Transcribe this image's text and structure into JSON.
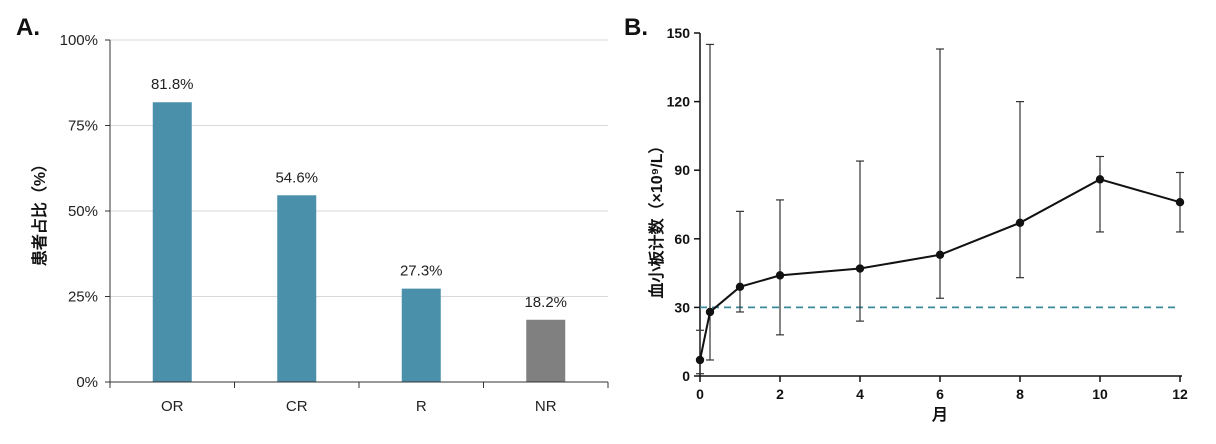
{
  "panels": {
    "a_label": "A.",
    "b_label": "B."
  },
  "chart_data": [
    {
      "type": "bar",
      "categories": [
        "OR",
        "CR",
        "R",
        "NR"
      ],
      "values": [
        81.8,
        54.6,
        27.3,
        18.2
      ],
      "value_labels": [
        "81.8%",
        "54.6%",
        "27.3%",
        "18.2%"
      ],
      "colors": [
        "#4a90ab",
        "#4a90ab",
        "#4a90ab",
        "#808080"
      ],
      "ylabel": "患者占比（%）",
      "xlabel": "",
      "ylim": [
        0,
        100
      ],
      "yticks": [
        0,
        25,
        50,
        75,
        100
      ],
      "ytick_labels": [
        "0%",
        "25%",
        "50%",
        "75%",
        "100%"
      ],
      "grid": true
    },
    {
      "type": "line",
      "x": [
        0,
        0.25,
        1,
        2,
        4,
        6,
        8,
        10,
        12
      ],
      "y": [
        7,
        28,
        39,
        44,
        47,
        53,
        67,
        86,
        76
      ],
      "err_upper": [
        20,
        145,
        72,
        77,
        94,
        143,
        120,
        96,
        89
      ],
      "err_lower": [
        1,
        7,
        28,
        18,
        24,
        34,
        43,
        63,
        63
      ],
      "xlabel": "月",
      "ylabel": "血小板计数（×10⁹/L）",
      "xlim": [
        0,
        12
      ],
      "ylim": [
        0,
        150
      ],
      "xticks": [
        0,
        2,
        4,
        6,
        8,
        10,
        12
      ],
      "yticks": [
        0,
        30,
        60,
        90,
        120,
        150
      ],
      "reference_line": {
        "y": 30,
        "style": "dashed",
        "color": "#3a8a9a"
      },
      "line_color": "#111111",
      "grid": false
    }
  ]
}
